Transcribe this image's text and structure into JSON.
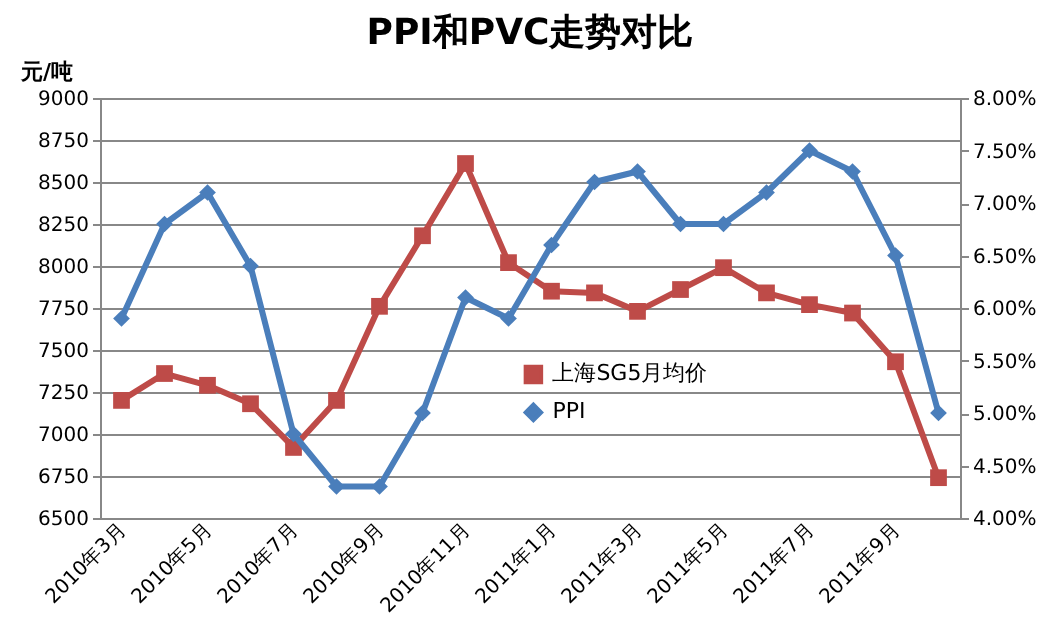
{
  "chart_data": {
    "type": "line",
    "title": "PPI和PVC走势对比",
    "ylabel": "元/吨",
    "categories": [
      "2010年3月",
      null,
      "2010年5月",
      null,
      "2010年7月",
      null,
      "2010年9月",
      null,
      "2010年11月",
      null,
      "2011年1月",
      null,
      "2011年3月",
      null,
      "2011年5月",
      null,
      "2011年7月",
      null,
      "2011年9月",
      null
    ],
    "series": [
      {
        "name": "上海SG5月均价",
        "color": "#be4b48",
        "marker": "square",
        "values": [
          7200,
          7360,
          7290,
          7180,
          6920,
          7200,
          7760,
          8180,
          8610,
          8020,
          7850,
          7840,
          7730,
          7860,
          7990,
          7840,
          7770,
          7720,
          7430,
          6740
        ]
      },
      {
        "name": "PPI",
        "color": "#4a7ebb",
        "marker": "diamond",
        "axis": "y2",
        "values": [
          5.9,
          6.8,
          7.1,
          6.4,
          4.8,
          4.3,
          4.3,
          5.0,
          6.1,
          5.9,
          6.6,
          7.2,
          7.3,
          6.8,
          6.8,
          7.1,
          7.5,
          7.3,
          6.5,
          5.0
        ]
      }
    ],
    "ylim": [
      6500,
      9000
    ],
    "yticks": [
      6500,
      6750,
      7000,
      7250,
      7500,
      7750,
      8000,
      8250,
      8500,
      8750,
      9000
    ],
    "y2lim": [
      4,
      8
    ],
    "y2ticks": [
      {
        "value": 4,
        "label": "4.00%"
      },
      {
        "value": 4.5,
        "label": "4.50%"
      },
      {
        "value": 5,
        "label": "5.00%"
      },
      {
        "value": 5.5,
        "label": "5.50%"
      },
      {
        "value": 6,
        "label": "6.00%"
      },
      {
        "value": 6.5,
        "label": "6.50%"
      },
      {
        "value": 7,
        "label": "7.00%"
      },
      {
        "value": 7.5,
        "label": "7.50%"
      },
      {
        "value": 8,
        "label": "8.00%"
      }
    ],
    "grid": "y",
    "legend": "bottom right",
    "line_style": "solid"
  }
}
